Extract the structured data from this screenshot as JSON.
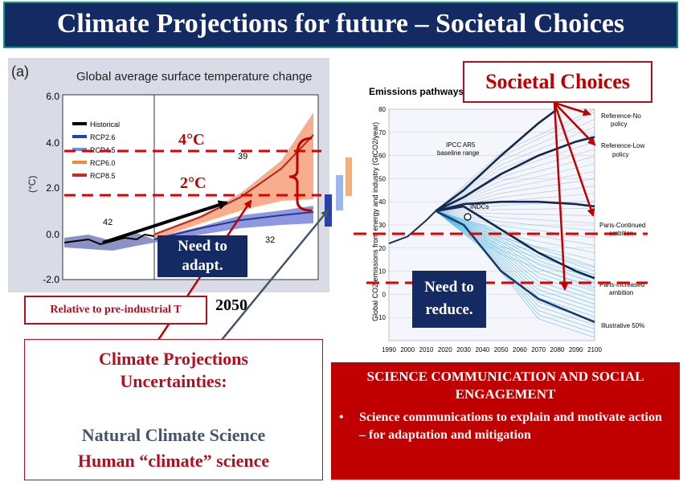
{
  "title": "Climate Projections for future – Societal Choices",
  "left_chart": {
    "panel_label": "(a)",
    "chart_title": "Global average surface temperature change",
    "ylabel": "(°C)",
    "yticks": [
      "6.0",
      "4.0",
      "2.0",
      "0.0",
      "-2.0"
    ],
    "legend": [
      "Historical",
      "RCP2.6",
      "RCP4.5",
      "RCP6.0",
      "RCP8.5"
    ],
    "model_counts": [
      "42",
      "39",
      "32"
    ],
    "thresholds": [
      "4°C",
      "2°C"
    ],
    "colors": {
      "historical": "#000000",
      "rcp26": "#2b3fa8",
      "rcp45": "#6f8fe0",
      "rcp60": "#f08a30",
      "rcp85": "#c0301e"
    }
  },
  "chart_data": {
    "type": "line",
    "title": "Emissions pathways",
    "ylabel": "Global CO2 emissions from energy and industry (GtCO2/year)",
    "ylim": [
      -20,
      80
    ],
    "xlim": [
      1990,
      2100
    ],
    "x_ticks": [
      "1990",
      "2000",
      "2010",
      "2020",
      "2030",
      "2040",
      "2050",
      "2060",
      "2070",
      "2080",
      "2090",
      "2100"
    ],
    "y_ticks": [
      "80",
      "70",
      "60",
      "50",
      "40",
      "30",
      "20",
      "10",
      "0",
      "-10"
    ],
    "series": [
      {
        "name": "Reference-No policy",
        "x": [
          2015,
          2030,
          2050,
          2070,
          2080
        ],
        "y": [
          36,
          45,
          60,
          74,
          80
        ]
      },
      {
        "name": "Reference-Low policy",
        "x": [
          2015,
          2030,
          2050,
          2070,
          2090,
          2100
        ],
        "y": [
          36,
          42,
          52,
          60,
          66,
          68
        ]
      },
      {
        "name": "Paris-Continued ambition",
        "x": [
          2015,
          2030,
          2050,
          2070,
          2090,
          2100
        ],
        "y": [
          36,
          39,
          40,
          40,
          39,
          38
        ]
      },
      {
        "name": "Paris-Increased ambition",
        "x": [
          2015,
          2030,
          2050,
          2070,
          2090,
          2100
        ],
        "y": [
          36,
          38,
          28,
          18,
          10,
          7
        ]
      },
      {
        "name": "Illustrative 50%",
        "x": [
          2015,
          2030,
          2050,
          2070,
          2100
        ],
        "y": [
          36,
          30,
          10,
          -2,
          -12
        ]
      }
    ],
    "annotations": [
      "IPCC AR5 baseline range",
      "INDCs",
      "Reference-No policy",
      "Reference-Low policy",
      "Paris-Continued ambition",
      "Paris-Increased ambition",
      "Illustrative 50%"
    ]
  },
  "boxes": {
    "adapt": [
      "Need to",
      "adapt."
    ],
    "reduce": [
      "Need to",
      "reduce."
    ],
    "relative": "Relative to pre-industrial T",
    "year": "2050",
    "uncert_title": [
      "Climate Projections",
      "Uncertainties:"
    ],
    "natural": "Natural Climate Science",
    "human": "Human “climate” science",
    "societal": "Societal Choices",
    "sci_header": [
      "SCIENCE COMMUNICATION AND SOCIAL",
      "ENGAGEMENT"
    ],
    "sci_bullet": "Science communications to explain and motivate action – for adaptation and mitigation",
    "bullet_char": "•"
  }
}
